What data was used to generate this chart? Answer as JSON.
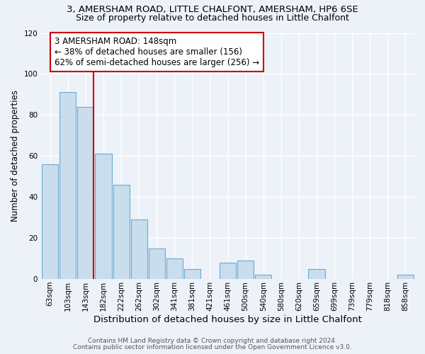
{
  "title_line1": "3, AMERSHAM ROAD, LITTLE CHALFONT, AMERSHAM, HP6 6SE",
  "title_line2": "Size of property relative to detached houses in Little Chalfont",
  "xlabel": "Distribution of detached houses by size in Little Chalfont",
  "ylabel": "Number of detached properties",
  "footer_line1": "Contains HM Land Registry data © Crown copyright and database right 2024.",
  "footer_line2": "Contains public sector information licensed under the Open Government Licence v3.0.",
  "bar_labels": [
    "63sqm",
    "103sqm",
    "143sqm",
    "182sqm",
    "222sqm",
    "262sqm",
    "302sqm",
    "341sqm",
    "381sqm",
    "421sqm",
    "461sqm",
    "500sqm",
    "540sqm",
    "580sqm",
    "620sqm",
    "659sqm",
    "699sqm",
    "739sqm",
    "779sqm",
    "818sqm",
    "858sqm"
  ],
  "bar_values": [
    56,
    91,
    84,
    61,
    46,
    29,
    15,
    10,
    5,
    0,
    8,
    9,
    2,
    0,
    0,
    5,
    0,
    0,
    0,
    0,
    2
  ],
  "bar_color": "#c9dded",
  "bar_edge_color": "#6aaad4",
  "reference_line_color": "#cc0000",
  "annotation_text_line1": "3 AMERSHAM ROAD: 148sqm",
  "annotation_text_line2": "← 38% of detached houses are smaller (156)",
  "annotation_text_line3": "62% of semi-detached houses are larger (256) →",
  "ylim": [
    0,
    120
  ],
  "yticks": [
    0,
    20,
    40,
    60,
    80,
    100,
    120
  ],
  "bg_color": "#edf2f9",
  "grid_color": "#ffffff",
  "title1_fontsize": 9.5,
  "title2_fontsize": 9,
  "xlabel_fontsize": 9.5,
  "ylabel_fontsize": 8.5,
  "tick_fontsize": 7.5,
  "annotation_fontsize": 8.5,
  "footer_fontsize": 6.5
}
